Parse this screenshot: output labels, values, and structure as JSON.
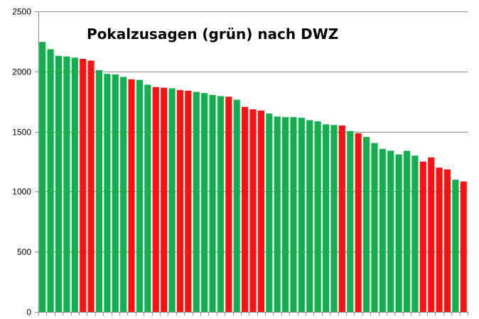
{
  "chart_data": {
    "type": "bar",
    "title": "Pokalzusagen (grün) nach DWZ",
    "xlabel": "",
    "ylabel": "",
    "ylim": [
      0,
      2500
    ],
    "yticks": [
      0,
      500,
      1000,
      1500,
      2000,
      2500
    ],
    "grid": true,
    "legend": "none",
    "colors": {
      "yes": "#10b04d",
      "no": "#ff1010"
    },
    "bars": [
      {
        "value": 2245,
        "status": "yes"
      },
      {
        "value": 2185,
        "status": "yes"
      },
      {
        "value": 2130,
        "status": "yes"
      },
      {
        "value": 2125,
        "status": "yes"
      },
      {
        "value": 2115,
        "status": "yes"
      },
      {
        "value": 2105,
        "status": "no"
      },
      {
        "value": 2090,
        "status": "no"
      },
      {
        "value": 2010,
        "status": "yes"
      },
      {
        "value": 1980,
        "status": "yes"
      },
      {
        "value": 1975,
        "status": "yes"
      },
      {
        "value": 1955,
        "status": "yes"
      },
      {
        "value": 1935,
        "status": "no"
      },
      {
        "value": 1930,
        "status": "yes"
      },
      {
        "value": 1890,
        "status": "yes"
      },
      {
        "value": 1870,
        "status": "no"
      },
      {
        "value": 1865,
        "status": "no"
      },
      {
        "value": 1860,
        "status": "yes"
      },
      {
        "value": 1845,
        "status": "no"
      },
      {
        "value": 1840,
        "status": "no"
      },
      {
        "value": 1830,
        "status": "yes"
      },
      {
        "value": 1820,
        "status": "yes"
      },
      {
        "value": 1805,
        "status": "yes"
      },
      {
        "value": 1795,
        "status": "yes"
      },
      {
        "value": 1790,
        "status": "no"
      },
      {
        "value": 1765,
        "status": "yes"
      },
      {
        "value": 1705,
        "status": "no"
      },
      {
        "value": 1685,
        "status": "no"
      },
      {
        "value": 1675,
        "status": "no"
      },
      {
        "value": 1650,
        "status": "yes"
      },
      {
        "value": 1625,
        "status": "yes"
      },
      {
        "value": 1620,
        "status": "yes"
      },
      {
        "value": 1620,
        "status": "yes"
      },
      {
        "value": 1615,
        "status": "yes"
      },
      {
        "value": 1595,
        "status": "yes"
      },
      {
        "value": 1585,
        "status": "yes"
      },
      {
        "value": 1560,
        "status": "yes"
      },
      {
        "value": 1555,
        "status": "yes"
      },
      {
        "value": 1550,
        "status": "no"
      },
      {
        "value": 1505,
        "status": "yes"
      },
      {
        "value": 1485,
        "status": "no"
      },
      {
        "value": 1455,
        "status": "yes"
      },
      {
        "value": 1405,
        "status": "yes"
      },
      {
        "value": 1355,
        "status": "yes"
      },
      {
        "value": 1340,
        "status": "yes"
      },
      {
        "value": 1310,
        "status": "yes"
      },
      {
        "value": 1340,
        "status": "yes"
      },
      {
        "value": 1300,
        "status": "yes"
      },
      {
        "value": 1250,
        "status": "no"
      },
      {
        "value": 1285,
        "status": "no"
      },
      {
        "value": 1200,
        "status": "no"
      },
      {
        "value": 1185,
        "status": "no"
      },
      {
        "value": 1100,
        "status": "yes"
      },
      {
        "value": 1085,
        "status": "no"
      }
    ]
  }
}
